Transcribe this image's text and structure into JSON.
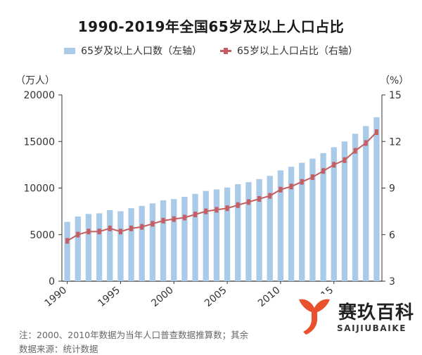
{
  "title": "1990-2019年全国65岁及以上人口占比",
  "legend": {
    "bar": "65岁及以上人口数（左轴）",
    "line": "65岁以上人口占比（右轴）"
  },
  "units": {
    "left": "（万人）",
    "right": "（%）"
  },
  "note": "注：2000、2010年数据为当年人口普查数据推算数；其余",
  "source": "数据来源：统计数据",
  "watermark": {
    "name": "赛玖百科",
    "pinyin": "SAIJIUBAIKE"
  },
  "colors": {
    "bar": "#a9cbe8",
    "line": "#c55d61",
    "logo": "#e8512b"
  },
  "chart_data": {
    "type": "bar",
    "x": [
      1990,
      1991,
      1992,
      1993,
      1994,
      1995,
      1996,
      1997,
      1998,
      1999,
      2000,
      2001,
      2002,
      2003,
      2004,
      2005,
      2006,
      2007,
      2008,
      2009,
      2010,
      2011,
      2012,
      2013,
      2014,
      2015,
      2016,
      2017,
      2018,
      2019
    ],
    "xticks": [
      "1990",
      "1995",
      "2000",
      "2005",
      "2010",
      "2015"
    ],
    "series": [
      {
        "axis": "left",
        "kind": "bar",
        "values": [
          6368,
          6938,
          7218,
          7289,
          7622,
          7510,
          7833,
          8085,
          8359,
          8679,
          8821,
          9062,
          9377,
          9692,
          9857,
          10055,
          10419,
          10636,
          10956,
          11307,
          11894,
          12288,
          12714,
          13161,
          13755,
          14386,
          15003,
          15831,
          16658,
          17603
        ]
      },
      {
        "axis": "right",
        "kind": "line",
        "values": [
          5.6,
          6.0,
          6.2,
          6.2,
          6.4,
          6.2,
          6.4,
          6.5,
          6.7,
          6.9,
          7.0,
          7.1,
          7.3,
          7.5,
          7.6,
          7.7,
          7.9,
          8.1,
          8.3,
          8.5,
          8.9,
          9.1,
          9.4,
          9.7,
          10.1,
          10.5,
          10.8,
          11.4,
          11.9,
          12.6
        ]
      }
    ],
    "left_ticks": [
      0,
      5000,
      10000,
      15000,
      20000
    ],
    "right_ticks": [
      3,
      6,
      9,
      12,
      15
    ],
    "ylim_left": [
      0,
      20000
    ],
    "ylim_right": [
      3,
      15
    ],
    "grid": false,
    "legend_position": "top"
  }
}
